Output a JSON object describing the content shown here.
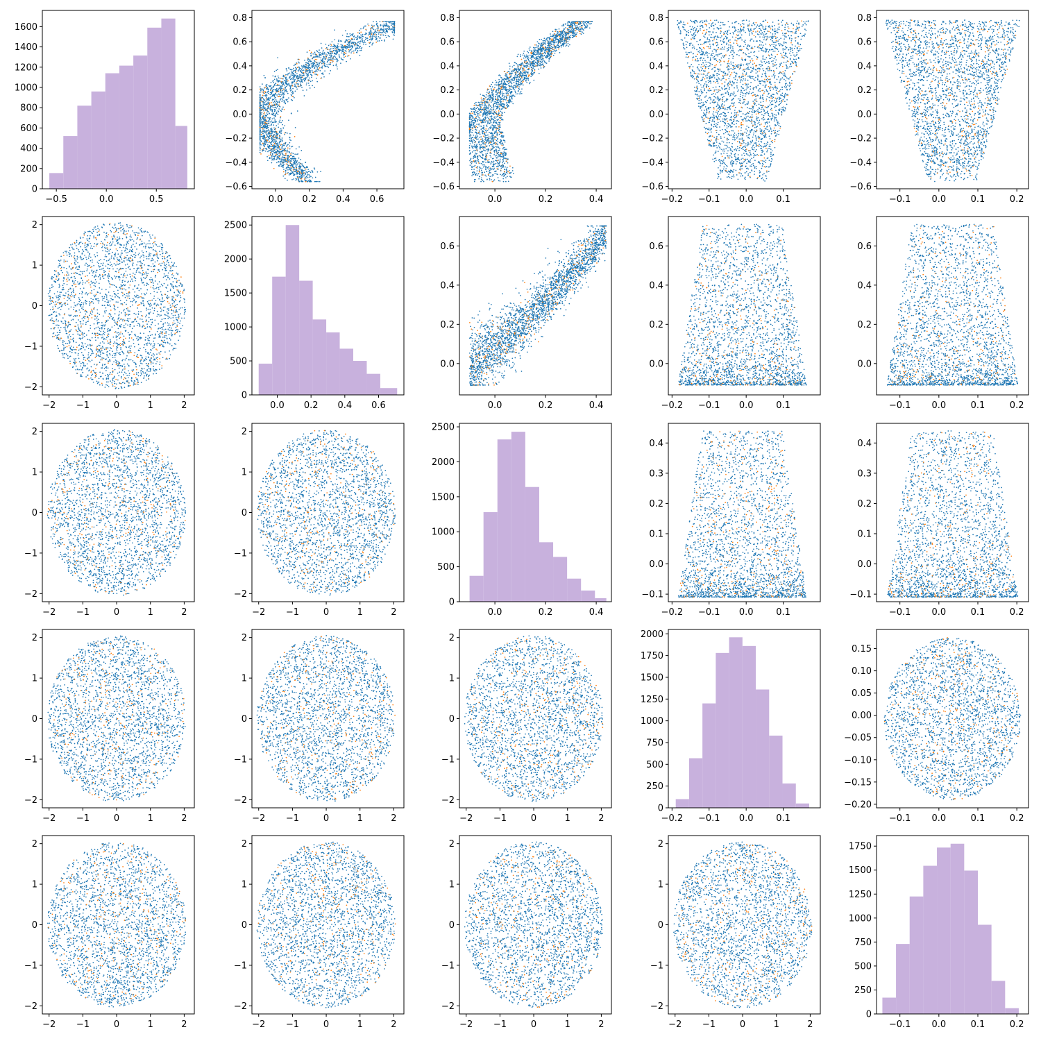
{
  "colors": {
    "primary": "#1f77b4",
    "secondary": "#ff7f0e",
    "hist": "#c8b1dd",
    "frame": "#000000"
  },
  "chart_data": [
    {
      "type": "bar",
      "row": 0,
      "col": 0,
      "bins": [
        [
          -0.57,
          -0.43
        ],
        [
          -0.43,
          -0.29
        ],
        [
          -0.29,
          -0.15
        ],
        [
          -0.15,
          -0.01
        ],
        [
          -0.01,
          0.13
        ],
        [
          0.13,
          0.27
        ],
        [
          0.27,
          0.41
        ],
        [
          0.41,
          0.55
        ],
        [
          0.55,
          0.69
        ],
        [
          0.69,
          0.81
        ]
      ],
      "values": [
        155,
        520,
        820,
        960,
        1140,
        1215,
        1315,
        1590,
        1680,
        620
      ],
      "xlim": [
        -0.64,
        0.88
      ],
      "ylim": [
        0,
        1760
      ],
      "xticks": [
        -0.5,
        0.0,
        0.5
      ],
      "yticks": [
        0,
        200,
        400,
        600,
        800,
        1000,
        1200,
        1400,
        1600
      ]
    },
    {
      "type": "scatter",
      "row": 0,
      "col": 1,
      "shape": "crescent",
      "xlim": [
        -0.14,
        0.76
      ],
      "ylim": [
        -0.62,
        0.86
      ],
      "xticks": [
        0.0,
        0.2,
        0.4,
        0.6
      ],
      "yticks": [
        -0.6,
        -0.4,
        -0.2,
        0.0,
        0.2,
        0.4,
        0.6,
        0.8
      ],
      "x_range": [
        -0.1,
        0.72
      ],
      "y_range": [
        -0.56,
        0.78
      ]
    },
    {
      "type": "scatter",
      "row": 0,
      "col": 2,
      "shape": "banana",
      "xlim": [
        -0.14,
        0.46
      ],
      "ylim": [
        -0.62,
        0.86
      ],
      "xticks": [
        0.0,
        0.2,
        0.4
      ],
      "yticks": [
        -0.6,
        -0.4,
        -0.2,
        0.0,
        0.2,
        0.4,
        0.6,
        0.8
      ],
      "x_range": [
        -0.1,
        0.44
      ],
      "y_range": [
        -0.56,
        0.78
      ]
    },
    {
      "type": "scatter",
      "row": 0,
      "col": 3,
      "shape": "funnel",
      "xlim": [
        -0.21,
        0.2
      ],
      "ylim": [
        -0.62,
        0.86
      ],
      "xticks": [
        -0.2,
        -0.1,
        0.0,
        0.1
      ],
      "yticks": [
        -0.6,
        -0.4,
        -0.2,
        0.0,
        0.2,
        0.4,
        0.6,
        0.8
      ],
      "x_range": [
        -0.19,
        0.17
      ],
      "y_range": [
        -0.56,
        0.78
      ]
    },
    {
      "type": "scatter",
      "row": 0,
      "col": 4,
      "shape": "funnel",
      "xlim": [
        -0.16,
        0.23
      ],
      "ylim": [
        -0.62,
        0.86
      ],
      "xticks": [
        -0.1,
        0.0,
        0.1,
        0.2
      ],
      "yticks": [
        -0.6,
        -0.4,
        -0.2,
        0.0,
        0.2,
        0.4,
        0.6,
        0.8
      ],
      "x_range": [
        -0.14,
        0.21
      ],
      "y_range": [
        -0.56,
        0.78
      ]
    },
    {
      "type": "scatter",
      "row": 1,
      "col": 0,
      "shape": "disk",
      "xlim": [
        -2.2,
        2.3
      ],
      "ylim": [
        -2.2,
        2.2
      ],
      "xticks": [
        -2,
        -1,
        0,
        1,
        2
      ],
      "yticks": [
        -2,
        -1,
        0,
        1,
        2
      ],
      "x_range": [
        -2.05,
        2.05
      ],
      "y_range": [
        -2.05,
        2.05
      ]
    },
    {
      "type": "bar",
      "row": 1,
      "col": 1,
      "bins": [
        [
          -0.11,
          -0.03
        ],
        [
          -0.03,
          0.05
        ],
        [
          0.05,
          0.13
        ],
        [
          0.13,
          0.21
        ],
        [
          0.21,
          0.29
        ],
        [
          0.29,
          0.37
        ],
        [
          0.37,
          0.45
        ],
        [
          0.45,
          0.53
        ],
        [
          0.53,
          0.61
        ],
        [
          0.61,
          0.71
        ]
      ],
      "values": [
        460,
        1740,
        2500,
        1680,
        1110,
        920,
        680,
        500,
        310,
        100
      ],
      "xlim": [
        -0.15,
        0.75
      ],
      "ylim": [
        0,
        2625
      ],
      "xticks": [
        0.0,
        0.2,
        0.4,
        0.6
      ],
      "yticks": [
        0,
        500,
        1000,
        1500,
        2000,
        2500
      ]
    },
    {
      "type": "scatter",
      "row": 1,
      "col": 2,
      "shape": "wedge",
      "xlim": [
        -0.14,
        0.46
      ],
      "ylim": [
        -0.16,
        0.75
      ],
      "xticks": [
        0.0,
        0.2,
        0.4
      ],
      "yticks": [
        0.0,
        0.2,
        0.4,
        0.6
      ],
      "x_range": [
        -0.1,
        0.44
      ],
      "y_range": [
        -0.11,
        0.71
      ]
    },
    {
      "type": "scatter",
      "row": 1,
      "col": 3,
      "shape": "blob",
      "xlim": [
        -0.21,
        0.2
      ],
      "ylim": [
        -0.16,
        0.75
      ],
      "xticks": [
        -0.2,
        -0.1,
        0.0,
        0.1
      ],
      "yticks": [
        0.0,
        0.2,
        0.4,
        0.6
      ],
      "x_range": [
        -0.19,
        0.17
      ],
      "y_range": [
        -0.11,
        0.71
      ]
    },
    {
      "type": "scatter",
      "row": 1,
      "col": 4,
      "shape": "blob",
      "xlim": [
        -0.16,
        0.23
      ],
      "ylim": [
        -0.16,
        0.75
      ],
      "xticks": [
        -0.1,
        0.0,
        0.1,
        0.2
      ],
      "yticks": [
        0.0,
        0.2,
        0.4,
        0.6
      ],
      "x_range": [
        -0.14,
        0.21
      ],
      "y_range": [
        -0.11,
        0.71
      ]
    },
    {
      "type": "scatter",
      "row": 2,
      "col": 0,
      "shape": "disk",
      "xlim": [
        -2.2,
        2.3
      ],
      "ylim": [
        -2.2,
        2.2
      ],
      "xticks": [
        -2,
        -1,
        0,
        1,
        2
      ],
      "yticks": [
        -2,
        -1,
        0,
        1,
        2
      ],
      "x_range": [
        -2.05,
        2.05
      ],
      "y_range": [
        -2.05,
        2.05
      ]
    },
    {
      "type": "scatter",
      "row": 2,
      "col": 1,
      "shape": "disk",
      "xlim": [
        -2.2,
        2.3
      ],
      "ylim": [
        -2.2,
        2.2
      ],
      "xticks": [
        -2,
        -1,
        0,
        1,
        2
      ],
      "yticks": [
        -2,
        -1,
        0,
        1,
        2
      ],
      "x_range": [
        -2.05,
        2.05
      ],
      "y_range": [
        -2.05,
        2.05
      ]
    },
    {
      "type": "bar",
      "row": 2,
      "col": 2,
      "bins": [
        [
          -0.1,
          -0.045
        ],
        [
          -0.045,
          0.01
        ],
        [
          0.01,
          0.065
        ],
        [
          0.065,
          0.12
        ],
        [
          0.12,
          0.175
        ],
        [
          0.175,
          0.23
        ],
        [
          0.23,
          0.285
        ],
        [
          0.285,
          0.34
        ],
        [
          0.34,
          0.395
        ],
        [
          0.395,
          0.44
        ]
      ],
      "values": [
        370,
        1280,
        2320,
        2430,
        1640,
        850,
        640,
        330,
        160,
        50
      ],
      "xlim": [
        -0.14,
        0.46
      ],
      "ylim": [
        0,
        2550
      ],
      "xticks": [
        0.0,
        0.2,
        0.4
      ],
      "yticks": [
        0,
        500,
        1000,
        1500,
        2000,
        2500
      ]
    },
    {
      "type": "scatter",
      "row": 2,
      "col": 3,
      "shape": "blob",
      "xlim": [
        -0.21,
        0.2
      ],
      "ylim": [
        -0.125,
        0.465
      ],
      "xticks": [
        -0.2,
        -0.1,
        0.0,
        0.1
      ],
      "yticks": [
        -0.1,
        0.0,
        0.1,
        0.2,
        0.3,
        0.4
      ],
      "x_range": [
        -0.19,
        0.17
      ],
      "y_range": [
        -0.11,
        0.44
      ]
    },
    {
      "type": "scatter",
      "row": 2,
      "col": 4,
      "shape": "blob",
      "xlim": [
        -0.16,
        0.23
      ],
      "ylim": [
        -0.125,
        0.465
      ],
      "xticks": [
        -0.1,
        0.0,
        0.1,
        0.2
      ],
      "yticks": [
        -0.1,
        0.0,
        0.1,
        0.2,
        0.3,
        0.4
      ],
      "x_range": [
        -0.14,
        0.21
      ],
      "y_range": [
        -0.11,
        0.44
      ]
    },
    {
      "type": "scatter",
      "row": 3,
      "col": 0,
      "shape": "disk",
      "xlim": [
        -2.2,
        2.3
      ],
      "ylim": [
        -2.2,
        2.2
      ],
      "xticks": [
        -2,
        -1,
        0,
        1,
        2
      ],
      "yticks": [
        -2,
        -1,
        0,
        1,
        2
      ],
      "x_range": [
        -2.05,
        2.05
      ],
      "y_range": [
        -2.05,
        2.05
      ]
    },
    {
      "type": "scatter",
      "row": 3,
      "col": 1,
      "shape": "disk",
      "xlim": [
        -2.2,
        2.3
      ],
      "ylim": [
        -2.2,
        2.2
      ],
      "xticks": [
        -2,
        -1,
        0,
        1,
        2
      ],
      "yticks": [
        -2,
        -1,
        0,
        1,
        2
      ],
      "x_range": [
        -2.05,
        2.05
      ],
      "y_range": [
        -2.05,
        2.05
      ]
    },
    {
      "type": "scatter",
      "row": 3,
      "col": 2,
      "shape": "disk",
      "xlim": [
        -2.2,
        2.3
      ],
      "ylim": [
        -2.2,
        2.2
      ],
      "xticks": [
        -2,
        -1,
        0,
        1,
        2
      ],
      "yticks": [
        -2,
        -1,
        0,
        1,
        2
      ],
      "x_range": [
        -2.05,
        2.05
      ],
      "y_range": [
        -2.05,
        2.05
      ]
    },
    {
      "type": "bar",
      "row": 3,
      "col": 3,
      "bins": [
        [
          -0.19,
          -0.154
        ],
        [
          -0.154,
          -0.118
        ],
        [
          -0.118,
          -0.082
        ],
        [
          -0.082,
          -0.046
        ],
        [
          -0.046,
          -0.01
        ],
        [
          -0.01,
          0.026
        ],
        [
          0.026,
          0.062
        ],
        [
          0.062,
          0.098
        ],
        [
          0.098,
          0.134
        ],
        [
          0.134,
          0.17
        ]
      ],
      "values": [
        100,
        570,
        1200,
        1780,
        1960,
        1860,
        1360,
        830,
        280,
        50
      ],
      "xlim": [
        -0.21,
        0.2
      ],
      "ylim": [
        0,
        2050
      ],
      "xticks": [
        -0.2,
        -0.1,
        0.0,
        0.1
      ],
      "yticks": [
        0,
        250,
        500,
        750,
        1000,
        1250,
        1500,
        1750,
        2000
      ]
    },
    {
      "type": "scatter",
      "row": 3,
      "col": 4,
      "shape": "disk-small",
      "xlim": [
        -0.16,
        0.23
      ],
      "ylim": [
        -0.208,
        0.193
      ],
      "xticks": [
        -0.1,
        0.0,
        0.1,
        0.2
      ],
      "yticks": [
        -0.2,
        -0.15,
        -0.1,
        -0.05,
        0.0,
        0.05,
        0.1,
        0.15
      ],
      "x_range": [
        -0.14,
        0.21
      ],
      "y_range": [
        -0.19,
        0.175
      ]
    },
    {
      "type": "scatter",
      "row": 4,
      "col": 0,
      "shape": "disk",
      "xlim": [
        -2.2,
        2.3
      ],
      "ylim": [
        -2.2,
        2.2
      ],
      "xticks": [
        -2,
        -1,
        0,
        1,
        2
      ],
      "yticks": [
        -2,
        -1,
        0,
        1,
        2
      ],
      "x_range": [
        -2.05,
        2.05
      ],
      "y_range": [
        -2.05,
        2.05
      ]
    },
    {
      "type": "scatter",
      "row": 4,
      "col": 1,
      "shape": "disk",
      "xlim": [
        -2.2,
        2.3
      ],
      "ylim": [
        -2.2,
        2.2
      ],
      "xticks": [
        -2,
        -1,
        0,
        1,
        2
      ],
      "yticks": [
        -2,
        -1,
        0,
        1,
        2
      ],
      "x_range": [
        -2.05,
        2.05
      ],
      "y_range": [
        -2.05,
        2.05
      ]
    },
    {
      "type": "scatter",
      "row": 4,
      "col": 2,
      "shape": "disk",
      "xlim": [
        -2.2,
        2.3
      ],
      "ylim": [
        -2.2,
        2.2
      ],
      "xticks": [
        -2,
        -1,
        0,
        1,
        2
      ],
      "yticks": [
        -2,
        -1,
        0,
        1,
        2
      ],
      "x_range": [
        -2.05,
        2.05
      ],
      "y_range": [
        -2.05,
        2.05
      ]
    },
    {
      "type": "scatter",
      "row": 4,
      "col": 3,
      "shape": "disk",
      "xlim": [
        -2.2,
        2.3
      ],
      "ylim": [
        -2.2,
        2.2
      ],
      "xticks": [
        -2,
        -1,
        0,
        1,
        2
      ],
      "yticks": [
        -2,
        -1,
        0,
        1,
        2
      ],
      "x_range": [
        -2.05,
        2.05
      ],
      "y_range": [
        -2.05,
        2.05
      ]
    },
    {
      "type": "bar",
      "row": 4,
      "col": 4,
      "bins": [
        [
          -0.145,
          -0.11
        ],
        [
          -0.11,
          -0.075
        ],
        [
          -0.075,
          -0.04
        ],
        [
          -0.04,
          -0.005
        ],
        [
          -0.005,
          0.03
        ],
        [
          0.03,
          0.065
        ],
        [
          0.065,
          0.1
        ],
        [
          0.1,
          0.135
        ],
        [
          0.135,
          0.17
        ],
        [
          0.17,
          0.205
        ]
      ],
      "values": [
        170,
        730,
        1225,
        1545,
        1735,
        1775,
        1495,
        930,
        345,
        60
      ],
      "xlim": [
        -0.16,
        0.23
      ],
      "ylim": [
        0,
        1860
      ],
      "xticks": [
        -0.1,
        0.0,
        0.1,
        0.2
      ],
      "yticks": [
        0,
        250,
        500,
        750,
        1000,
        1250,
        1500,
        1750
      ]
    }
  ]
}
